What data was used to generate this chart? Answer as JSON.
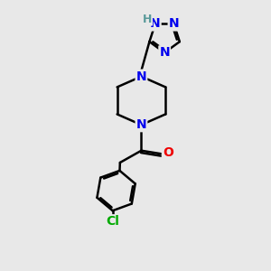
{
  "bg_color": "#e8e8e8",
  "bond_color": "#000000",
  "bond_width": 1.8,
  "atom_colors": {
    "N": "#0000ee",
    "O": "#ee0000",
    "Cl": "#00aa00",
    "H": "#5a9a9a",
    "C": "#000000"
  },
  "font_size_atom": 10,
  "font_size_h": 9,
  "figsize": [
    3.0,
    3.0
  ],
  "dpi": 100
}
